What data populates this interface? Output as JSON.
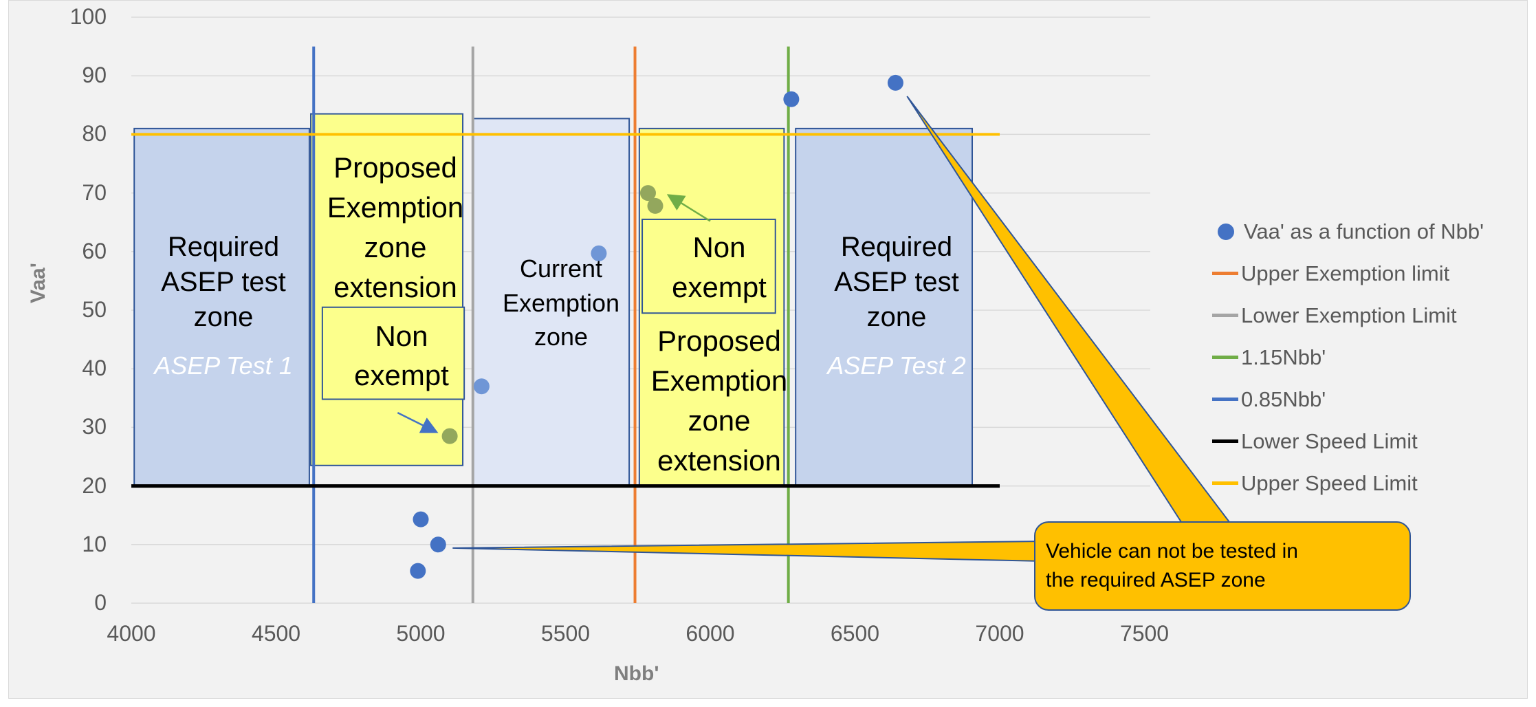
{
  "chart_data": {
    "type": "scatter",
    "xlabel": "Nbb'",
    "ylabel": "Vaa'",
    "xlim": [
      4000,
      7500
    ],
    "ylim": [
      0,
      100
    ],
    "x_ticks": [
      "4000",
      "4500",
      "5000",
      "5500",
      "6000",
      "6500",
      "7000",
      "7500"
    ],
    "y_ticks": [
      "0",
      "10",
      "20",
      "30",
      "40",
      "50",
      "60",
      "70",
      "80",
      "90",
      "100"
    ],
    "grid": "horizontal",
    "legend_position": "right",
    "scatter_series": {
      "name": "Vaa' as a function of Nbb'",
      "color": "#4472c4",
      "points": [
        {
          "x": 4990,
          "y": 5.5
        },
        {
          "x": 5000,
          "y": 14.3
        },
        {
          "x": 5060,
          "y": 10.0
        },
        {
          "x": 5100,
          "y": 28.5
        },
        {
          "x": 5210,
          "y": 37.0
        },
        {
          "x": 5615,
          "y": 59.7
        },
        {
          "x": 5785,
          "y": 70.0
        },
        {
          "x": 5810,
          "y": 67.8
        },
        {
          "x": 6280,
          "y": 86.0
        },
        {
          "x": 6640,
          "y": 88.8
        }
      ]
    },
    "lines": [
      {
        "name": "Upper Exemption limit",
        "orientation": "vertical",
        "value": 5740,
        "color": "#ed7d31"
      },
      {
        "name": "Lower Exemption Limit",
        "orientation": "vertical",
        "value": 5180,
        "color": "#a5a5a5"
      },
      {
        "name": "1.15Nbb'",
        "orientation": "vertical",
        "value": 6270,
        "color": "#70ad47"
      },
      {
        "name": "0.85Nbb'",
        "orientation": "vertical",
        "value": 4630,
        "color": "#4472c4"
      },
      {
        "name": "Lower Speed Limit",
        "orientation": "horizontal",
        "value": 20,
        "color": "#000000"
      },
      {
        "name": "Upper Speed Limit",
        "orientation": "horizontal",
        "value": 80,
        "color": "#ffc000"
      }
    ],
    "zones": [
      {
        "label": "Required ASEP test zone",
        "sublabel": "ASEP Test 1"
      },
      {
        "label": "Proposed Exemption zone extension",
        "sublabel": ""
      },
      {
        "label": "Non exempt",
        "sublabel": ""
      },
      {
        "label": "Current Exemption zone",
        "sublabel": ""
      },
      {
        "label": "Non exempt",
        "sublabel": ""
      },
      {
        "label": "Proposed Exemption zone extension",
        "sublabel": ""
      },
      {
        "label": "Required ASEP test zone",
        "sublabel": "ASEP Test 2"
      }
    ],
    "callout": "Vehicle can  not be tested in the required ASEP zone"
  },
  "zone_text": {
    "req1_l1": "Required",
    "req1_l2": "ASEP test",
    "req1_l3": "zone",
    "req1_sub": "ASEP Test 1",
    "prop1_l1": "Proposed",
    "prop1_l2": "Exemption",
    "prop1_l3": "zone",
    "prop1_l4": "extension",
    "non1_l1": "Non",
    "non1_l2": "exempt",
    "cur_l1": "Current",
    "cur_l2": "Exemption",
    "cur_l3": "zone",
    "non2_l1": "Non",
    "non2_l2": "exempt",
    "prop2_l1": "Proposed",
    "prop2_l2": "Exemption",
    "prop2_l3": "zone",
    "prop2_l4": "extension",
    "req2_l1": "Required",
    "req2_l2": "ASEP test",
    "req2_l3": "zone",
    "req2_sub": "ASEP Test 2"
  },
  "callout_lines": {
    "l1": "Vehicle can  not be tested in",
    "l2": "the required ASEP zone"
  },
  "legend": [
    {
      "label": "Vaa' as a function of Nbb'",
      "kind": "dot",
      "color": "#4472c4"
    },
    {
      "label": "Upper Exemption limit",
      "kind": "line",
      "color": "#ed7d31"
    },
    {
      "label": "Lower Exemption Limit",
      "kind": "line",
      "color": "#a5a5a5"
    },
    {
      "label": "1.15Nbb'",
      "kind": "line",
      "color": "#70ad47"
    },
    {
      "label": "0.85Nbb'",
      "kind": "line",
      "color": "#4472c4"
    },
    {
      "label": "Lower Speed Limit",
      "kind": "line",
      "color": "#000000"
    },
    {
      "label": "Upper Speed Limit",
      "kind": "line",
      "color": "#ffc000"
    }
  ]
}
